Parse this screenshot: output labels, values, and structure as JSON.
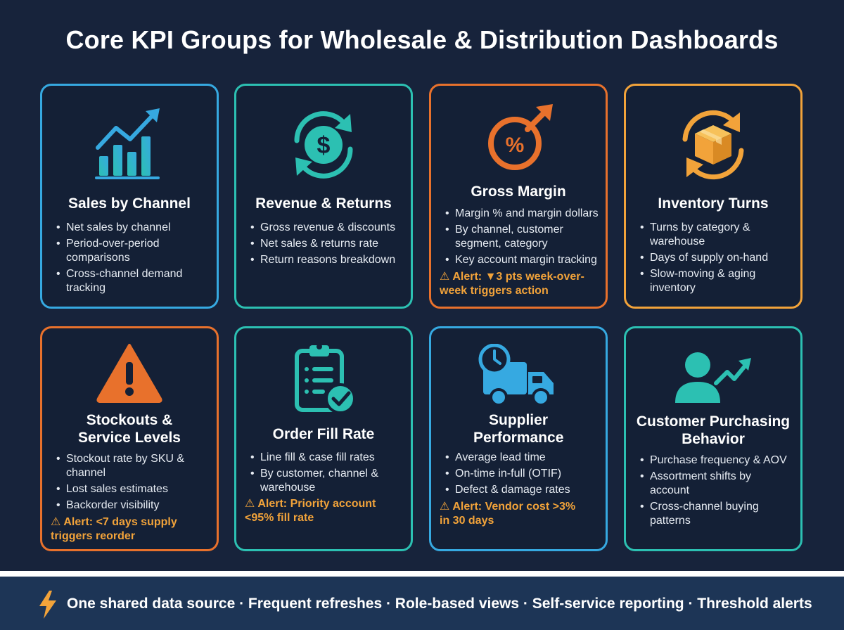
{
  "title": "Core KPI Groups for Wholesale & Distribution Dashboards",
  "cards": [
    {
      "title": "Sales by Channel",
      "icon": "bar-chart-trend-icon",
      "border": "#36a9e1",
      "items": [
        "Net sales by channel",
        "Period-over-period comparisons",
        "Cross-channel demand tracking"
      ]
    },
    {
      "title": "Revenue & Returns",
      "icon": "dollar-cycle-icon",
      "border": "#2cc0b2",
      "items": [
        "Gross revenue & discounts",
        "Net sales & returns rate",
        "Return reasons breakdown"
      ]
    },
    {
      "title": "Gross Margin",
      "icon": "percent-arrow-icon",
      "border": "#e8712c",
      "items": [
        "Margin % and margin dollars",
        "By channel, customer segment, category",
        "Key account margin tracking"
      ],
      "alert": "Alert: ▼3 pts week-over-week triggers action"
    },
    {
      "title": "Inventory Turns",
      "icon": "box-cycle-icon",
      "border": "#f2a33a",
      "items": [
        "Turns by category & warehouse",
        "Days of supply on-hand",
        "Slow-moving & aging inventory"
      ]
    },
    {
      "title": "Stockouts & Service Levels",
      "icon": "warning-triangle-icon",
      "border": "#e8712c",
      "items": [
        "Stockout rate by SKU & channel",
        "Lost sales estimates",
        "Backorder visibility"
      ],
      "alert": "Alert: <7 days supply triggers reorder"
    },
    {
      "title": "Order Fill Rate",
      "icon": "clipboard-check-icon",
      "border": "#2cc0b2",
      "items": [
        "Line fill & case fill rates",
        "By customer, channel & warehouse"
      ],
      "alert": "Alert: Priority account <95% fill rate"
    },
    {
      "title": "Supplier Performance",
      "icon": "truck-clock-icon",
      "border": "#36a9e1",
      "items": [
        "Average lead time",
        "On-time in-full (OTIF)",
        "Defect & damage rates"
      ],
      "alert": "Alert: Vendor cost >3% in 30 days"
    },
    {
      "title": "Customer Purchasing Behavior",
      "icon": "person-trend-icon",
      "border": "#2cc0b2",
      "items": [
        "Purchase frequency & AOV",
        "Assortment shifts by account",
        "Cross-channel buying patterns"
      ]
    }
  ],
  "footer": {
    "icon": "lightning-bolt-icon",
    "text": "One shared data source · Frequent refreshes · Role-based views · Self-service reporting · Threshold alerts"
  }
}
